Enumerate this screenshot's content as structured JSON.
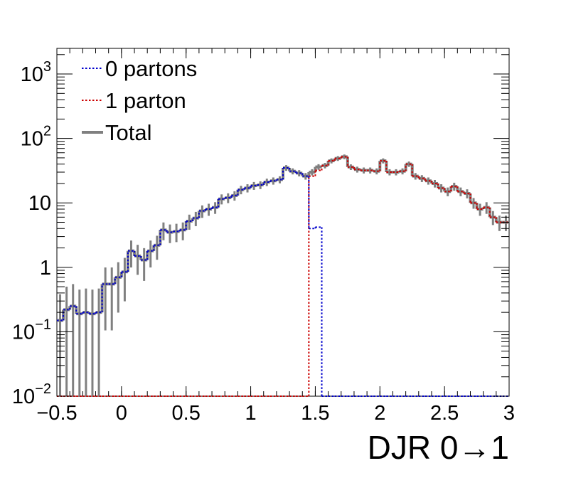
{
  "chart_data": {
    "type": "line",
    "subtype": "step-histogram",
    "xlabel": "DJR 0→1",
    "ylabel": "",
    "xlim": [
      -0.5,
      3.0
    ],
    "ylim": [
      0.01,
      2500
    ],
    "y_scale": "log",
    "x_ticks": [
      -0.5,
      0,
      0.5,
      1,
      1.5,
      2,
      2.5,
      3
    ],
    "x_tick_labels": [
      "−0.5",
      "0",
      "0.5",
      "1",
      "1.5",
      "2",
      "2.5",
      "3"
    ],
    "y_tick_labels": [
      {
        "value": 0.01,
        "base": "10",
        "exp": "−2"
      },
      {
        "value": 0.1,
        "base": "10",
        "exp": "−1"
      },
      {
        "value": 1,
        "base": "1",
        "exp": ""
      },
      {
        "value": 10,
        "base": "10",
        "exp": ""
      },
      {
        "value": 100,
        "base": "10",
        "exp": "2"
      },
      {
        "value": 1000,
        "base": "10",
        "exp": "3"
      }
    ],
    "bin_edges": [
      -0.5,
      -0.45,
      -0.4,
      -0.35,
      -0.3,
      -0.25,
      -0.2,
      -0.15,
      -0.1,
      -0.05,
      0.0,
      0.05,
      0.1,
      0.15,
      0.2,
      0.25,
      0.3,
      0.35,
      0.4,
      0.45,
      0.5,
      0.55,
      0.6,
      0.65,
      0.7,
      0.75,
      0.8,
      0.85,
      0.9,
      0.95,
      1.0,
      1.05,
      1.1,
      1.15,
      1.2,
      1.25,
      1.3,
      1.35,
      1.4,
      1.45,
      1.5,
      1.55,
      1.6,
      1.65,
      1.7,
      1.75,
      1.8,
      1.85,
      1.9,
      1.95,
      2.0,
      2.05,
      2.1,
      2.15,
      2.2,
      2.25,
      2.3,
      2.35,
      2.4,
      2.45,
      2.5,
      2.55,
      2.6,
      2.65,
      2.7,
      2.75,
      2.8,
      2.85,
      2.9,
      2.95,
      3.0
    ],
    "legend": {
      "position": "top-left",
      "entries": [
        "0 partons",
        "1 parton",
        "Total"
      ]
    },
    "series": [
      {
        "name": "0 partons",
        "color": "#0000cc",
        "style": "dotted",
        "values": [
          0.15,
          0.22,
          0.25,
          0.19,
          0.2,
          0.19,
          0.2,
          0.55,
          0.55,
          0.7,
          0.85,
          1.8,
          1.5,
          1.3,
          1.8,
          2.2,
          3.8,
          3.5,
          3.6,
          3.8,
          5.2,
          5.8,
          7.5,
          8.0,
          8.5,
          11.5,
          12.0,
          13.0,
          16.0,
          17.0,
          18.5,
          19.0,
          21.0,
          22.0,
          23.0,
          35.0,
          31.0,
          29.0,
          26.0,
          4.0,
          4.2,
          0.01,
          0.01,
          0.01,
          0.01,
          0.01,
          0.01,
          0.01,
          0.01,
          0.01,
          0.01,
          0.01,
          0.01,
          0.01,
          0.01,
          0.01,
          0.01,
          0.01,
          0.01,
          0.01,
          0.01,
          0.01,
          0.01,
          0.01,
          0.01,
          0.01,
          0.01,
          0.01,
          0.01,
          0.01
        ]
      },
      {
        "name": "1 parton",
        "color": "#cc0000",
        "style": "dotted",
        "values": [
          0.01,
          0.01,
          0.01,
          0.01,
          0.01,
          0.01,
          0.01,
          0.01,
          0.01,
          0.01,
          0.01,
          0.01,
          0.01,
          0.01,
          0.01,
          0.01,
          0.01,
          0.01,
          0.01,
          0.01,
          0.01,
          0.01,
          0.01,
          0.01,
          0.01,
          0.01,
          0.01,
          0.01,
          0.01,
          0.01,
          0.01,
          0.01,
          0.01,
          0.01,
          0.01,
          0.01,
          0.01,
          0.01,
          0.01,
          26.0,
          32.0,
          38.0,
          45.0,
          49.0,
          52.0,
          36.0,
          33.0,
          32.0,
          32.0,
          31.0,
          45.0,
          30.0,
          30.0,
          31.0,
          40.0,
          26.0,
          24.0,
          22.0,
          20.0,
          17.0,
          15.0,
          18.0,
          15.0,
          14.0,
          10.0,
          8.0,
          8.5,
          6.0,
          5.0,
          5.0
        ]
      },
      {
        "name": "Total",
        "color": "#808080",
        "style": "solid",
        "values": [
          0.15,
          0.22,
          0.25,
          0.19,
          0.2,
          0.19,
          0.2,
          0.55,
          0.55,
          0.7,
          0.85,
          1.8,
          1.5,
          1.3,
          1.8,
          2.2,
          3.8,
          3.5,
          3.6,
          3.8,
          5.2,
          5.8,
          7.5,
          8.0,
          8.5,
          11.5,
          12.0,
          13.0,
          16.0,
          17.0,
          18.5,
          19.0,
          21.0,
          22.0,
          23.0,
          35.0,
          31.0,
          29.0,
          26.0,
          30.0,
          36.2,
          38.0,
          45.0,
          49.0,
          52.0,
          36.0,
          33.0,
          32.0,
          32.0,
          31.0,
          45.0,
          30.0,
          30.0,
          31.0,
          40.0,
          26.0,
          24.0,
          22.0,
          20.0,
          17.0,
          15.0,
          18.0,
          15.0,
          14.0,
          10.0,
          8.0,
          8.5,
          6.0,
          5.0,
          5.0
        ]
      }
    ]
  }
}
